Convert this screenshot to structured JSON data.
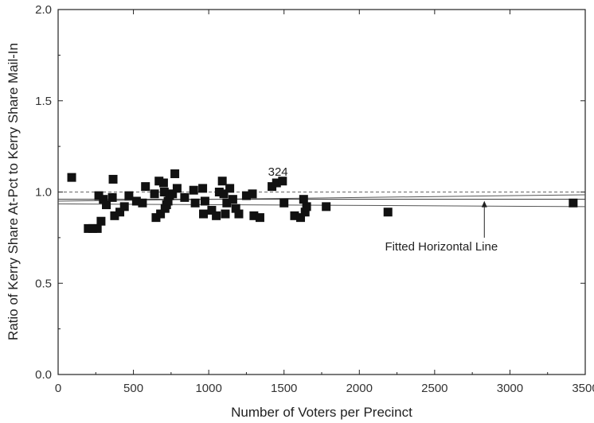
{
  "chart_data": {
    "type": "scatter",
    "title": "",
    "xlabel": "Number of Voters per Precinct",
    "ylabel": "Ratio of Kerry Share At-Pct to Kerry Share Mail-In",
    "xlim": [
      0,
      3500
    ],
    "ylim": [
      0.0,
      2.0
    ],
    "xticks": [
      0,
      500,
      1000,
      1500,
      2000,
      2500,
      3000,
      3500
    ],
    "xtick_labels": [
      "0",
      "500",
      "1000",
      "1500",
      "2000",
      "2500",
      "3000",
      "3500"
    ],
    "yticks": [
      0.0,
      0.5,
      1.0,
      1.5,
      2.0
    ],
    "ytick_labels": [
      "0.0",
      "0.5",
      "1.0",
      "1.5",
      "2.0"
    ],
    "grid": false,
    "series": [
      {
        "marker": "square",
        "color": "#111111",
        "points": [
          [
            90,
            1.08
          ],
          [
            200,
            0.8
          ],
          [
            230,
            0.8
          ],
          [
            260,
            0.8
          ],
          [
            270,
            0.98
          ],
          [
            285,
            0.84
          ],
          [
            300,
            0.96
          ],
          [
            320,
            0.93
          ],
          [
            360,
            0.97
          ],
          [
            365,
            1.07
          ],
          [
            375,
            0.87
          ],
          [
            410,
            0.89
          ],
          [
            440,
            0.92
          ],
          [
            470,
            0.98
          ],
          [
            520,
            0.95
          ],
          [
            560,
            0.94
          ],
          [
            580,
            1.03
          ],
          [
            640,
            0.99
          ],
          [
            650,
            0.86
          ],
          [
            670,
            1.06
          ],
          [
            680,
            0.88
          ],
          [
            700,
            1.05
          ],
          [
            705,
            1.0
          ],
          [
            710,
            0.91
          ],
          [
            720,
            0.93
          ],
          [
            730,
            0.95
          ],
          [
            740,
            0.98
          ],
          [
            760,
            0.99
          ],
          [
            775,
            1.1
          ],
          [
            790,
            1.02
          ],
          [
            840,
            0.97
          ],
          [
            900,
            1.01
          ],
          [
            910,
            0.94
          ],
          [
            960,
            1.02
          ],
          [
            965,
            0.88
          ],
          [
            975,
            0.95
          ],
          [
            1020,
            0.9
          ],
          [
            1050,
            0.87
          ],
          [
            1070,
            1.0
          ],
          [
            1090,
            1.06
          ],
          [
            1100,
            0.99
          ],
          [
            1110,
            0.88
          ],
          [
            1120,
            0.94
          ],
          [
            1140,
            1.02
          ],
          [
            1160,
            0.96
          ],
          [
            1180,
            0.91
          ],
          [
            1200,
            0.88
          ],
          [
            1250,
            0.98
          ],
          [
            1290,
            0.99
          ],
          [
            1300,
            0.87
          ],
          [
            1340,
            0.86
          ],
          [
            1420,
            1.03
          ],
          [
            1450,
            1.05
          ],
          [
            1490,
            1.06
          ],
          [
            1500,
            0.94
          ],
          [
            1570,
            0.87
          ],
          [
            1610,
            0.86
          ],
          [
            1630,
            0.96
          ],
          [
            1640,
            0.89
          ],
          [
            1650,
            0.92
          ],
          [
            1780,
            0.92
          ],
          [
            2190,
            0.89
          ],
          [
            3420,
            0.94
          ]
        ]
      }
    ],
    "reference_lines": [
      {
        "kind": "dashed",
        "y_start": 1.0,
        "y_end": 1.0,
        "color": "#666666"
      },
      {
        "kind": "fitted",
        "y_start": 0.96,
        "y_end": 0.96,
        "color": "#333333"
      },
      {
        "kind": "confidence-upper",
        "y_start": 0.95,
        "y_end": 0.985,
        "color": "#555555"
      },
      {
        "kind": "confidence-lower",
        "y_start": 0.935,
        "y_end": 0.92,
        "color": "#555555"
      }
    ],
    "annotations": [
      {
        "text": "324",
        "x": 1460,
        "y": 1.09,
        "kind": "point-label"
      },
      {
        "text": "Fitted Horizontal Line",
        "x": 2170,
        "y": 0.68,
        "kind": "arrow-label",
        "arrow_to": [
          2830,
          0.96
        ]
      }
    ]
  }
}
